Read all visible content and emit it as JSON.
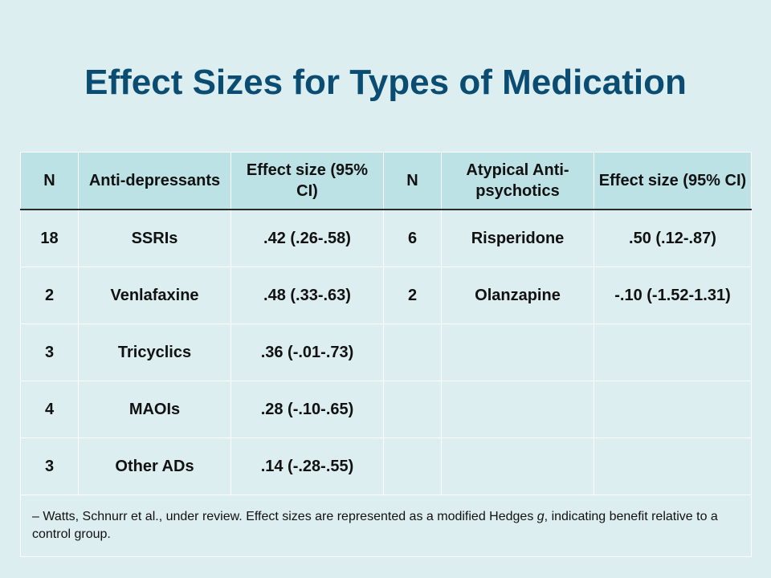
{
  "title": "Effect Sizes for Types of Medication",
  "table": {
    "headers": [
      "N",
      "Anti-depressants",
      "Effect size (95% CI)",
      "N",
      "Atypical Anti-psychotics",
      "Effect size (95% CI)"
    ],
    "rows": [
      [
        "18",
        "SSRIs",
        ".42 (.26-.58)",
        "6",
        "Risperidone",
        ".50 (.12-.87)"
      ],
      [
        "2",
        "Venlafaxine",
        ".48 (.33-.63)",
        "2",
        "Olanzapine",
        "-.10 (-1.52-1.31)"
      ],
      [
        "3",
        "Tricyclics",
        ".36 (-.01-.73)",
        "",
        "",
        ""
      ],
      [
        "4",
        "MAOIs",
        ".28 (-.10-.65)",
        "",
        "",
        ""
      ],
      [
        "3",
        "Other ADs",
        ".14 (-.28-.55)",
        "",
        "",
        ""
      ]
    ]
  },
  "footnote": {
    "prefix": "– Watts, Schnurr et al., under review. Effect sizes are represented as a modified Hedges ",
    "italic": "g",
    "suffix": ", indicating benefit relative to a control group."
  },
  "colors": {
    "title": "#0b4d72",
    "header_bg": "#bde2e6",
    "body_bg": "#ddeef0"
  }
}
